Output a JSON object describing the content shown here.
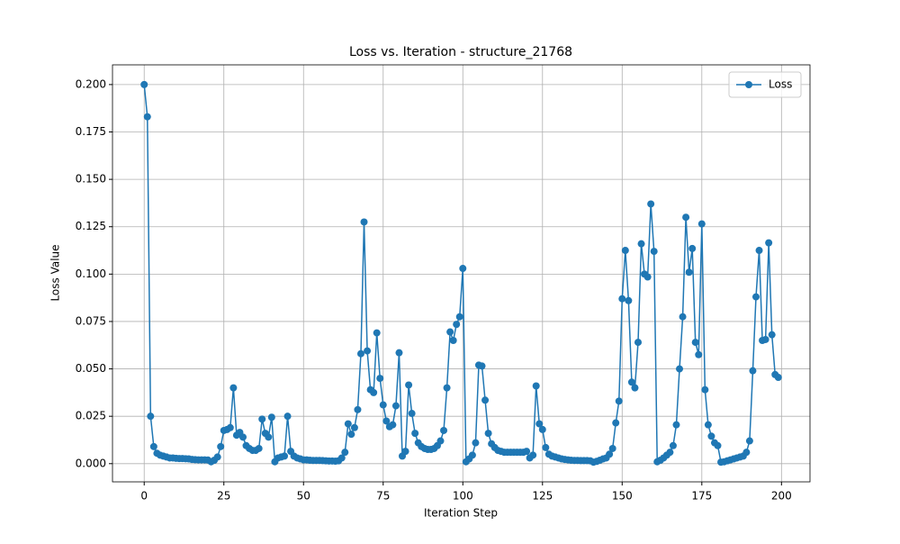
{
  "chart_data": {
    "type": "line",
    "title": "Loss vs. Iteration - structure_21768",
    "xlabel": "Iteration Step",
    "ylabel": "Loss Value",
    "x": [
      0,
      1,
      2,
      3,
      4,
      5,
      6,
      7,
      8,
      9,
      10,
      11,
      12,
      13,
      14,
      15,
      16,
      17,
      18,
      19,
      20,
      21,
      22,
      23,
      24,
      25,
      26,
      27,
      28,
      29,
      30,
      31,
      32,
      33,
      34,
      35,
      36,
      37,
      38,
      39,
      40,
      41,
      42,
      43,
      44,
      45,
      46,
      47,
      48,
      49,
      50,
      51,
      52,
      53,
      54,
      55,
      56,
      57,
      58,
      59,
      60,
      61,
      62,
      63,
      64,
      65,
      66,
      67,
      68,
      69,
      70,
      71,
      72,
      73,
      74,
      75,
      76,
      77,
      78,
      79,
      80,
      81,
      82,
      83,
      84,
      85,
      86,
      87,
      88,
      89,
      90,
      91,
      92,
      93,
      94,
      95,
      96,
      97,
      98,
      99,
      100,
      101,
      102,
      103,
      104,
      105,
      106,
      107,
      108,
      109,
      110,
      111,
      112,
      113,
      114,
      115,
      116,
      117,
      118,
      119,
      120,
      121,
      122,
      123,
      124,
      125,
      126,
      127,
      128,
      129,
      130,
      131,
      132,
      133,
      134,
      135,
      136,
      137,
      138,
      139,
      140,
      141,
      142,
      143,
      144,
      145,
      146,
      147,
      148,
      149,
      150,
      151,
      152,
      153,
      154,
      155,
      156,
      157,
      158,
      159,
      160,
      161,
      162,
      163,
      164,
      165,
      166,
      167,
      168,
      169,
      170,
      171,
      172,
      173,
      174,
      175,
      176,
      177,
      178,
      179,
      180,
      181,
      182,
      183,
      184,
      185,
      186,
      187,
      188,
      189,
      190,
      191,
      192,
      193,
      194,
      195,
      196,
      197,
      198,
      199
    ],
    "series": [
      {
        "name": "Loss",
        "color": "#1f77b4",
        "values": [
          0.2,
          0.183,
          0.025,
          0.009,
          0.0055,
          0.0045,
          0.004,
          0.0035,
          0.003,
          0.003,
          0.0028,
          0.0027,
          0.0027,
          0.0026,
          0.0025,
          0.0022,
          0.0021,
          0.002,
          0.002,
          0.002,
          0.0019,
          0.001,
          0.0018,
          0.0035,
          0.009,
          0.0175,
          0.018,
          0.019,
          0.04,
          0.015,
          0.0165,
          0.014,
          0.0095,
          0.008,
          0.007,
          0.007,
          0.008,
          0.0235,
          0.016,
          0.014,
          0.0245,
          0.001,
          0.003,
          0.0035,
          0.004,
          0.025,
          0.0065,
          0.004,
          0.003,
          0.0025,
          0.002,
          0.002,
          0.0018,
          0.0017,
          0.0017,
          0.0017,
          0.0016,
          0.0015,
          0.0014,
          0.0014,
          0.0013,
          0.0015,
          0.003,
          0.006,
          0.021,
          0.0155,
          0.019,
          0.0285,
          0.058,
          0.1275,
          0.0595,
          0.039,
          0.0375,
          0.069,
          0.045,
          0.031,
          0.0225,
          0.0195,
          0.0205,
          0.0305,
          0.0585,
          0.004,
          0.0065,
          0.0415,
          0.0265,
          0.016,
          0.011,
          0.009,
          0.008,
          0.0075,
          0.0075,
          0.008,
          0.0095,
          0.012,
          0.0175,
          0.04,
          0.0695,
          0.065,
          0.0735,
          0.0775,
          0.103,
          0.001,
          0.0025,
          0.0045,
          0.011,
          0.052,
          0.0515,
          0.0335,
          0.016,
          0.0105,
          0.0085,
          0.007,
          0.0065,
          0.006,
          0.006,
          0.006,
          0.006,
          0.006,
          0.006,
          0.006,
          0.0065,
          0.003,
          0.0045,
          0.041,
          0.021,
          0.018,
          0.0085,
          0.005,
          0.004,
          0.0035,
          0.003,
          0.0025,
          0.0022,
          0.002,
          0.0018,
          0.0017,
          0.0017,
          0.0016,
          0.0016,
          0.0016,
          0.0015,
          0.0008,
          0.0012,
          0.0018,
          0.0025,
          0.003,
          0.005,
          0.008,
          0.0215,
          0.033,
          0.087,
          0.1125,
          0.086,
          0.043,
          0.04,
          0.064,
          0.116,
          0.1,
          0.0985,
          0.137,
          0.112,
          0.001,
          0.0018,
          0.003,
          0.0045,
          0.006,
          0.0095,
          0.0205,
          0.05,
          0.0775,
          0.13,
          0.101,
          0.1135,
          0.064,
          0.0575,
          0.1265,
          0.039,
          0.0205,
          0.0145,
          0.011,
          0.0095,
          0.0008,
          0.001,
          0.0015,
          0.002,
          0.0025,
          0.003,
          0.0035,
          0.004,
          0.006,
          0.012,
          0.049,
          0.088,
          0.1125,
          0.065,
          0.0655,
          0.1165,
          0.068,
          0.047,
          0.0455
        ]
      }
    ],
    "xlim": [
      -9.95,
      208.95
    ],
    "xticks": [
      0,
      25,
      50,
      75,
      100,
      125,
      150,
      175,
      200
    ],
    "ylim": [
      -0.0096,
      0.2104
    ],
    "yticks": [
      {
        "value": 0,
        "label": "0.000"
      },
      {
        "value": 0.025,
        "label": "0.025"
      },
      {
        "value": 0.05,
        "label": "0.050"
      },
      {
        "value": 0.075,
        "label": "0.075"
      },
      {
        "value": 0.1,
        "label": "0.100"
      },
      {
        "value": 0.125,
        "label": "0.125"
      },
      {
        "value": 0.15,
        "label": "0.150"
      },
      {
        "value": 0.175,
        "label": "0.175"
      },
      {
        "value": 0.2,
        "label": "0.200"
      }
    ],
    "grid": true,
    "legend": "upper right"
  }
}
